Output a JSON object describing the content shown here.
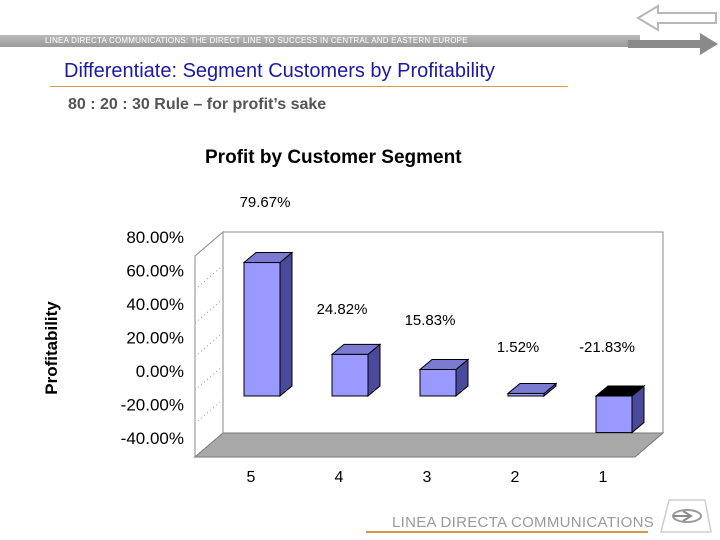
{
  "header": {
    "banner_text": "LINEA DIRECTA COMMUNICATIONS: THE DIRECT LINE TO SUCCESS IN CENTRAL AND EASTERN EUROPE"
  },
  "slide": {
    "title": "Differentiate: Segment Customers by Profitability",
    "subtitle": "80 : 20 : 30 Rule – for profit’s sake"
  },
  "footer": {
    "brand": "LINEA DIRECTA COMMUNICATIONS"
  },
  "colors": {
    "title": "#1a1aa6",
    "bar_front": "#9999ff",
    "bar_side": "#4a4a9a",
    "bar_top": "#7a7ad0",
    "accent_rule": "#d89a4a"
  },
  "chart_data": {
    "type": "bar",
    "title": "Profit by Customer Segment",
    "xlabel": "",
    "ylabel": "Profitability",
    "categories": [
      "5",
      "4",
      "3",
      "2",
      "1"
    ],
    "values": [
      79.67,
      24.82,
      15.83,
      1.52,
      -21.83
    ],
    "data_labels": [
      "79.67%",
      "24.82%",
      "15.83%",
      "1.52%",
      "-21.83%"
    ],
    "ylim": [
      -40,
      80
    ],
    "yticks": [
      80,
      60,
      40,
      20,
      0,
      -20,
      -40
    ],
    "ytick_labels": [
      "80.00%",
      "60.00%",
      "40.00%",
      "20.00%",
      "0.00%",
      "-20.00%",
      "-40.00%"
    ],
    "grid": true,
    "legend": "none"
  }
}
